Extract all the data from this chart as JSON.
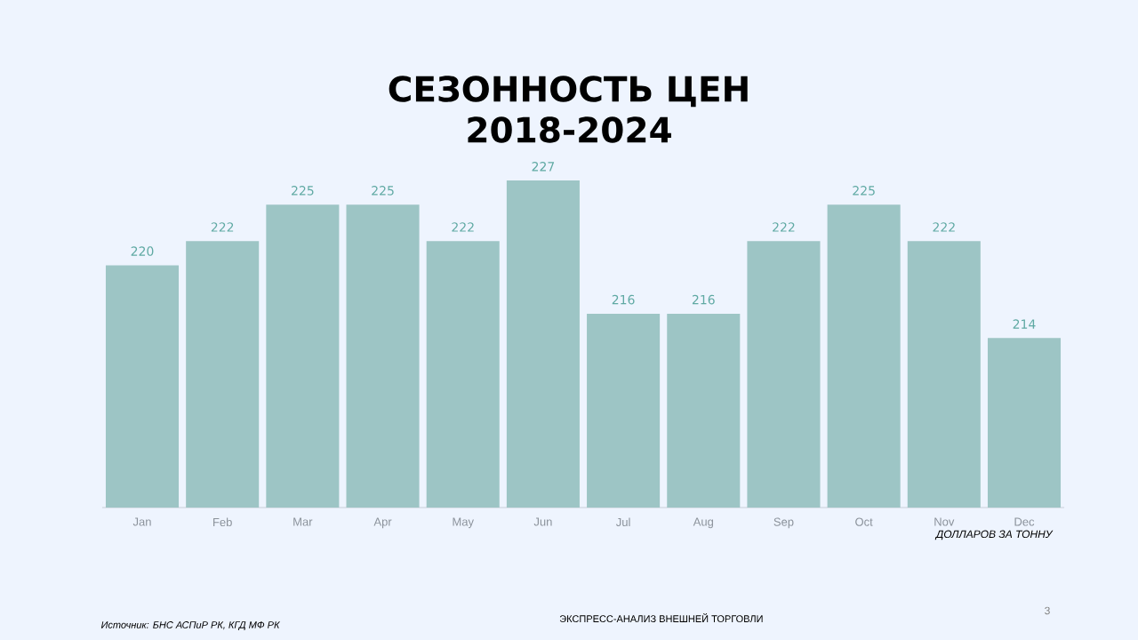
{
  "chart_data": {
    "type": "bar",
    "title": "СЕЗОННОСТЬ ЦЕН 2018-2024",
    "categories": [
      "Jan",
      "Feb",
      "Mar",
      "Apr",
      "May",
      "Jun",
      "Jul",
      "Aug",
      "Sep",
      "Oct",
      "Nov",
      "Dec"
    ],
    "values": [
      220,
      222,
      225,
      225,
      222,
      227,
      216,
      216,
      222,
      225,
      222,
      214
    ],
    "color": "#9dc5c5",
    "ylim": [
      200,
      227
    ],
    "tick_labels": "x",
    "data_labels": true,
    "annotations": [
      "ДОЛЛАРОВ ЗА ТОННУ",
      "Источник: БНС АСПиР РК, КГД МФ РК",
      "ЭКСПРЕСС-АНАЛИЗ ВНЕШНЕЙ ТОРГОВЛИ",
      "3"
    ]
  }
}
